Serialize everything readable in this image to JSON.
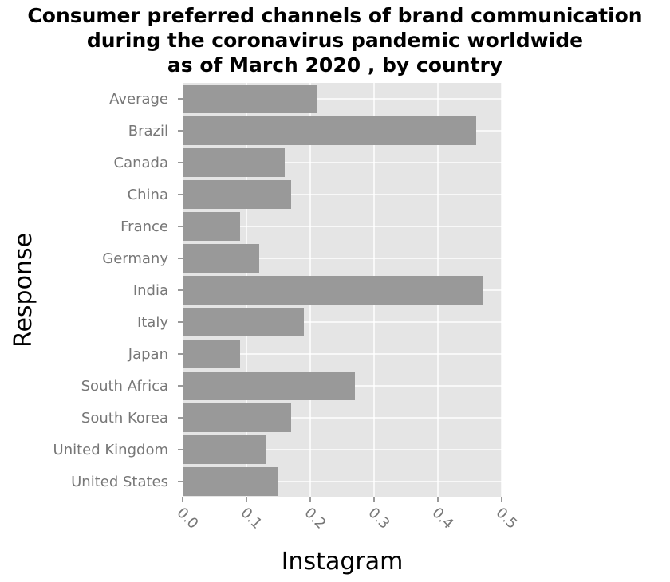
{
  "chart_data": {
    "type": "bar",
    "orientation": "horizontal",
    "title_lines": [
      "Consumer preferred channels of brand communication",
      "during the coronavirus pandemic worldwide",
      "as of March 2020 , by country"
    ],
    "xlabel": "Instagram",
    "ylabel": "Response",
    "xlim": [
      0,
      0.5
    ],
    "x_ticks": [
      "0.0",
      "0.1",
      "0.2",
      "0.3",
      "0.4",
      "0.5"
    ],
    "grid": true,
    "categories": [
      "Average",
      "Brazil",
      "Canada",
      "China",
      "France",
      "Germany",
      "India",
      "Italy",
      "Japan",
      "South Africa",
      "South Korea",
      "United Kingdom",
      "United States"
    ],
    "values": [
      0.21,
      0.46,
      0.16,
      0.17,
      0.09,
      0.12,
      0.47,
      0.19,
      0.09,
      0.27,
      0.17,
      0.13,
      0.15
    ],
    "colors": {
      "bar": "#999999",
      "plot_background": "#e5e5e5",
      "grid": "#ffffff",
      "tick_label": "#777777"
    }
  }
}
